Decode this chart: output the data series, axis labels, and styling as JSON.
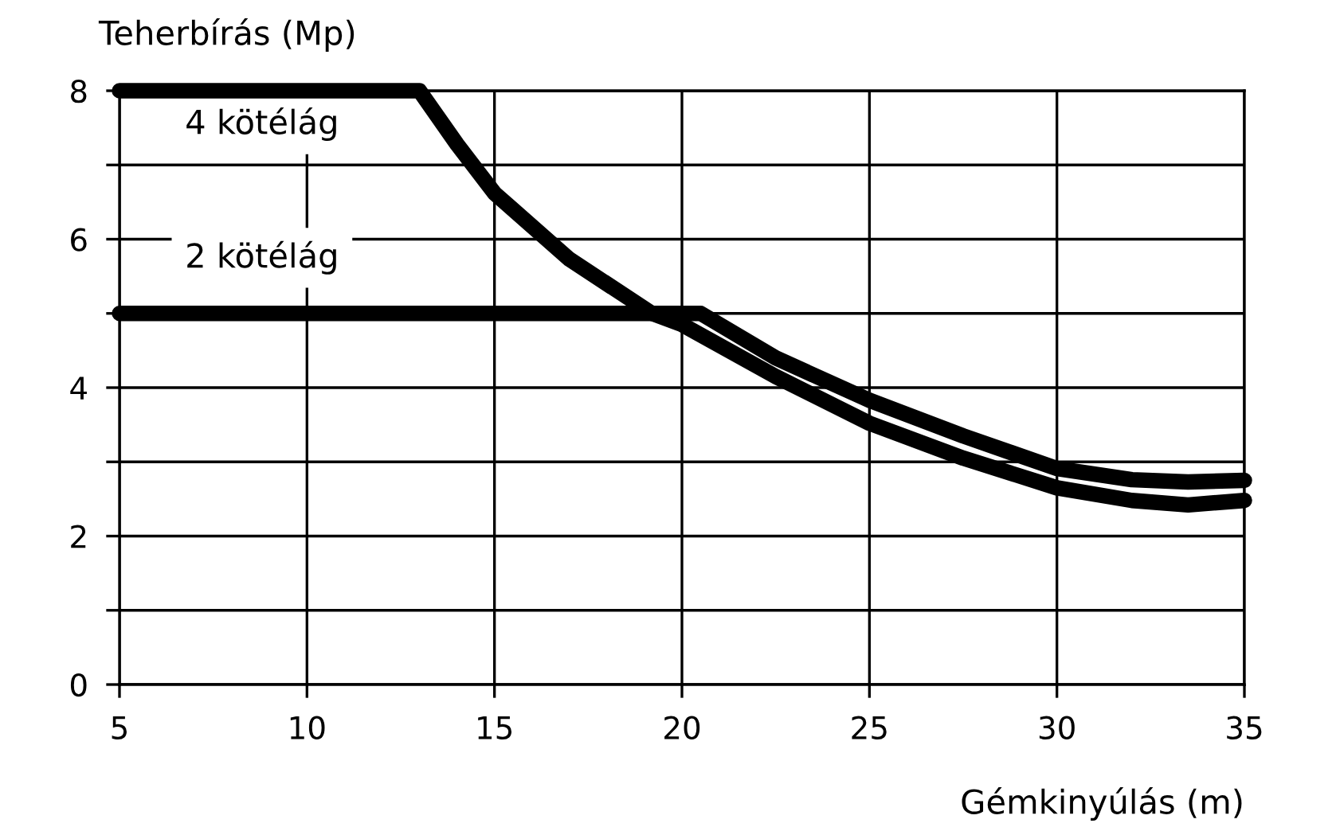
{
  "chart_data": {
    "type": "line",
    "ylabel": "Teherbírás (Mp)",
    "xlabel": "Gémkinyúlás (m)",
    "xlim": [
      5,
      35
    ],
    "ylim": [
      0,
      8
    ],
    "xticks": [
      5,
      10,
      15,
      20,
      25,
      30,
      35
    ],
    "yticks": [
      0,
      {
        "value": 1,
        "label": null
      },
      2,
      {
        "value": 3,
        "label": null
      },
      4,
      {
        "value": 5,
        "label": null
      },
      6,
      {
        "value": 7,
        "label": null
      },
      8
    ],
    "grid": true,
    "legend": false,
    "marker": "none",
    "line_style": "solid",
    "series": [
      {
        "name": "4 kötélág",
        "color": "#000000",
        "x": [
          5,
          13,
          14,
          15,
          17,
          19.2,
          20,
          22.5,
          25,
          27.5,
          30,
          32,
          33.5,
          35
        ],
        "values": [
          8,
          8,
          7.28,
          6.62,
          5.73,
          5,
          4.85,
          4.15,
          3.52,
          3.05,
          2.65,
          2.48,
          2.42,
          2.48
        ]
      },
      {
        "name": "2 kötélág",
        "color": "#000000",
        "x": [
          5,
          20.5,
          22.5,
          25,
          27.5,
          30,
          32,
          33.5,
          35
        ],
        "values": [
          5,
          5,
          4.4,
          3.83,
          3.35,
          2.91,
          2.76,
          2.73,
          2.75
        ]
      }
    ]
  }
}
